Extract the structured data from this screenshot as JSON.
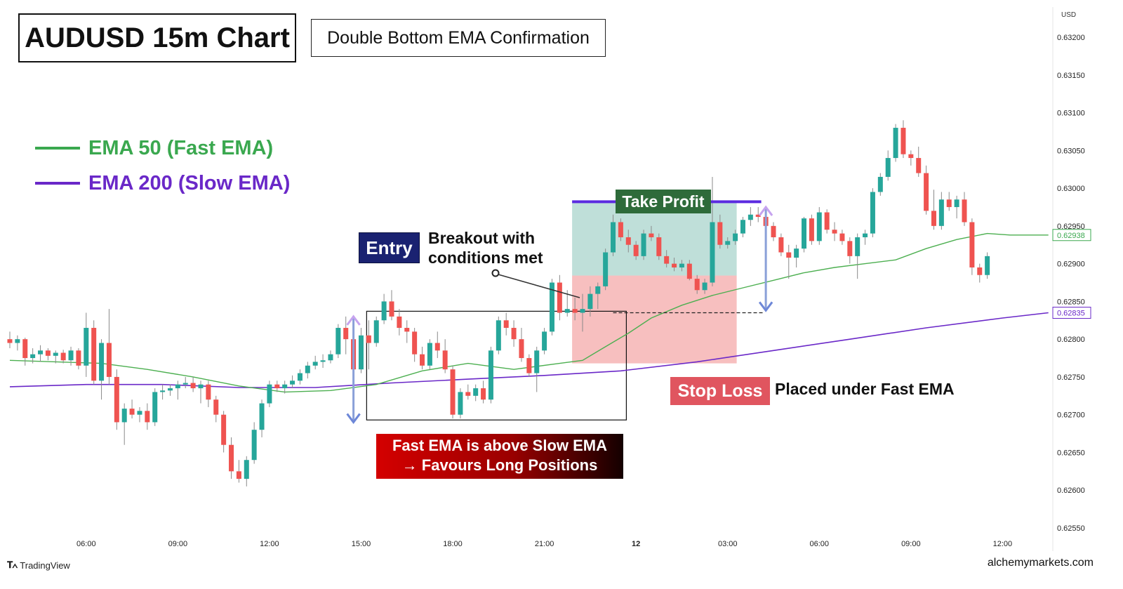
{
  "title": "AUDUSD 15m Chart",
  "subtitle": "Double Bottom EMA Confirmation",
  "legend": [
    {
      "label": "EMA 50 (Fast EMA)",
      "color": "#3aa84f"
    },
    {
      "label": "EMA 200 (Slow EMA)",
      "color": "#6a28c8"
    }
  ],
  "annotations": {
    "entry": "Entry",
    "breakout_line1": "Breakout with",
    "breakout_line2": "conditions met",
    "take_profit": "Take Profit",
    "stop_loss": "Stop Loss",
    "stop_loss_note": "Placed under Fast EMA",
    "ema_note_line1": "Fast EMA is above Slow EMA",
    "ema_note_line2": "→ Favours Long Positions"
  },
  "branding": {
    "tradingview": "TradingView",
    "site": "alchemymarkets.com"
  },
  "colors": {
    "bull": "#26a69a",
    "bear": "#ef5350",
    "fast_ema": "#4caf50",
    "slow_ema": "#6a28c8"
  },
  "chart_data": {
    "type": "candlestick",
    "currency": "USD",
    "y_ticks": [
      "0.63200",
      "0.63150",
      "0.63100",
      "0.63050",
      "0.63000",
      "0.62950",
      "0.62900",
      "0.62850",
      "0.62800",
      "0.62750",
      "0.62700",
      "0.62650",
      "0.62600",
      "0.62550"
    ],
    "ylim": [
      0.6252,
      0.6324
    ],
    "x_ticks": [
      {
        "bar": 10,
        "label": "06:00"
      },
      {
        "bar": 22,
        "label": "09:00"
      },
      {
        "bar": 34,
        "label": "12:00"
      },
      {
        "bar": 46,
        "label": "15:00"
      },
      {
        "bar": 58,
        "label": "18:00"
      },
      {
        "bar": 70,
        "label": "21:00"
      },
      {
        "bar": 82,
        "label": "12"
      },
      {
        "bar": 94,
        "label": "03:00"
      },
      {
        "bar": 106,
        "label": "06:00"
      },
      {
        "bar": 118,
        "label": "09:00"
      },
      {
        "bar": 130,
        "label": "12:00"
      }
    ],
    "price_labels": [
      {
        "value": 0.62938,
        "label": "0.62938",
        "series": "fast"
      },
      {
        "value": 0.62835,
        "label": "0.62835",
        "series": "slow"
      }
    ],
    "candles": [
      [
        0.628,
        0.6281,
        0.62788,
        0.62795
      ],
      [
        0.62795,
        0.62805,
        0.62785,
        0.628
      ],
      [
        0.628,
        0.62802,
        0.62765,
        0.62775
      ],
      [
        0.62775,
        0.62788,
        0.62768,
        0.6278
      ],
      [
        0.6278,
        0.62792,
        0.6277,
        0.62785
      ],
      [
        0.62785,
        0.62788,
        0.62772,
        0.62778
      ],
      [
        0.62778,
        0.62785,
        0.62768,
        0.62782
      ],
      [
        0.62782,
        0.62786,
        0.62768,
        0.62772
      ],
      [
        0.62772,
        0.6279,
        0.62765,
        0.62785
      ],
      [
        0.62785,
        0.62788,
        0.6276,
        0.62765
      ],
      [
        0.62765,
        0.62835,
        0.6275,
        0.62815
      ],
      [
        0.62815,
        0.62825,
        0.6274,
        0.62745
      ],
      [
        0.62745,
        0.628,
        0.6272,
        0.62795
      ],
      [
        0.62795,
        0.6284,
        0.6274,
        0.6275
      ],
      [
        0.6275,
        0.6276,
        0.6268,
        0.6269
      ],
      [
        0.6269,
        0.62715,
        0.6266,
        0.62708
      ],
      [
        0.62708,
        0.6272,
        0.62695,
        0.627
      ],
      [
        0.627,
        0.6271,
        0.6269,
        0.62705
      ],
      [
        0.62705,
        0.62715,
        0.6268,
        0.6269
      ],
      [
        0.6269,
        0.62735,
        0.62685,
        0.6273
      ],
      [
        0.6273,
        0.6274,
        0.6272,
        0.62732
      ],
      [
        0.62732,
        0.6274,
        0.62725,
        0.62735
      ],
      [
        0.62735,
        0.62745,
        0.6272,
        0.6274
      ],
      [
        0.6274,
        0.6275,
        0.62735,
        0.62742
      ],
      [
        0.62742,
        0.6275,
        0.6273,
        0.62735
      ],
      [
        0.62735,
        0.62745,
        0.62715,
        0.6274
      ],
      [
        0.6274,
        0.62745,
        0.6271,
        0.6272
      ],
      [
        0.6272,
        0.62725,
        0.6269,
        0.627
      ],
      [
        0.627,
        0.62705,
        0.6265,
        0.6266
      ],
      [
        0.6266,
        0.6267,
        0.62615,
        0.62625
      ],
      [
        0.62625,
        0.6264,
        0.6261,
        0.62615
      ],
      [
        0.62615,
        0.62645,
        0.62605,
        0.6264
      ],
      [
        0.6264,
        0.6269,
        0.62635,
        0.6268
      ],
      [
        0.6268,
        0.6272,
        0.6267,
        0.62715
      ],
      [
        0.62715,
        0.62745,
        0.6271,
        0.6274
      ],
      [
        0.6274,
        0.62745,
        0.6273,
        0.62735
      ],
      [
        0.62735,
        0.62745,
        0.62728,
        0.6274
      ],
      [
        0.6274,
        0.62752,
        0.62735,
        0.62745
      ],
      [
        0.62745,
        0.6276,
        0.6274,
        0.62755
      ],
      [
        0.62755,
        0.6277,
        0.62748,
        0.62765
      ],
      [
        0.62765,
        0.62778,
        0.6276,
        0.6277
      ],
      [
        0.6277,
        0.6278,
        0.62762,
        0.62772
      ],
      [
        0.62772,
        0.62785,
        0.62768,
        0.6278
      ],
      [
        0.6278,
        0.6282,
        0.62775,
        0.62815
      ],
      [
        0.62815,
        0.6283,
        0.6278,
        0.628
      ],
      [
        0.628,
        0.6281,
        0.6274,
        0.6276
      ],
      [
        0.6276,
        0.62815,
        0.62755,
        0.62805
      ],
      [
        0.62805,
        0.62825,
        0.6276,
        0.62795
      ],
      [
        0.62795,
        0.6283,
        0.6279,
        0.62825
      ],
      [
        0.62825,
        0.6286,
        0.6282,
        0.6285
      ],
      [
        0.6285,
        0.62865,
        0.62825,
        0.6283
      ],
      [
        0.6283,
        0.6284,
        0.62805,
        0.62815
      ],
      [
        0.62815,
        0.62825,
        0.62795,
        0.6281
      ],
      [
        0.6281,
        0.62815,
        0.6277,
        0.6278
      ],
      [
        0.6278,
        0.6279,
        0.6276,
        0.62765
      ],
      [
        0.62765,
        0.628,
        0.6276,
        0.62795
      ],
      [
        0.62795,
        0.6281,
        0.62775,
        0.62785
      ],
      [
        0.62785,
        0.628,
        0.62755,
        0.6276
      ],
      [
        0.6276,
        0.62765,
        0.62695,
        0.627
      ],
      [
        0.627,
        0.62735,
        0.62695,
        0.6273
      ],
      [
        0.6273,
        0.6274,
        0.6272,
        0.62725
      ],
      [
        0.62725,
        0.6274,
        0.62718,
        0.62735
      ],
      [
        0.62735,
        0.62745,
        0.62715,
        0.6272
      ],
      [
        0.6272,
        0.6279,
        0.62715,
        0.62785
      ],
      [
        0.62785,
        0.6283,
        0.6278,
        0.62825
      ],
      [
        0.62825,
        0.62835,
        0.62805,
        0.62815
      ],
      [
        0.62815,
        0.62825,
        0.6279,
        0.628
      ],
      [
        0.628,
        0.62815,
        0.6277,
        0.62775
      ],
      [
        0.62775,
        0.6278,
        0.6275,
        0.62755
      ],
      [
        0.62755,
        0.6279,
        0.6273,
        0.62785
      ],
      [
        0.62785,
        0.62815,
        0.6278,
        0.6281
      ],
      [
        0.6281,
        0.6288,
        0.62805,
        0.62875
      ],
      [
        0.62875,
        0.62885,
        0.62825,
        0.62835
      ],
      [
        0.62835,
        0.62865,
        0.6283,
        0.6284
      ],
      [
        0.6284,
        0.62855,
        0.62825,
        0.62835
      ],
      [
        0.62835,
        0.6286,
        0.6281,
        0.6284
      ],
      [
        0.6284,
        0.6287,
        0.6283,
        0.6286
      ],
      [
        0.6286,
        0.62875,
        0.6284,
        0.6287
      ],
      [
        0.6287,
        0.6292,
        0.62865,
        0.62915
      ],
      [
        0.62915,
        0.62965,
        0.6291,
        0.62955
      ],
      [
        0.62955,
        0.6296,
        0.6293,
        0.62935
      ],
      [
        0.62935,
        0.62945,
        0.62915,
        0.62925
      ],
      [
        0.62925,
        0.6293,
        0.62905,
        0.6291
      ],
      [
        0.6291,
        0.62945,
        0.62905,
        0.6294
      ],
      [
        0.6294,
        0.6295,
        0.6293,
        0.62935
      ],
      [
        0.62935,
        0.6294,
        0.62905,
        0.6291
      ],
      [
        0.6291,
        0.62918,
        0.62895,
        0.629
      ],
      [
        0.629,
        0.62908,
        0.6289,
        0.62895
      ],
      [
        0.62895,
        0.62905,
        0.6289,
        0.629
      ],
      [
        0.629,
        0.62905,
        0.62878,
        0.6288
      ],
      [
        0.6288,
        0.62885,
        0.6286,
        0.62865
      ],
      [
        0.62865,
        0.6288,
        0.6286,
        0.62875
      ],
      [
        0.62875,
        0.63015,
        0.6287,
        0.62955
      ],
      [
        0.62955,
        0.62965,
        0.6292,
        0.62925
      ],
      [
        0.62925,
        0.62935,
        0.6292,
        0.6293
      ],
      [
        0.6293,
        0.62945,
        0.62925,
        0.6294
      ],
      [
        0.6294,
        0.62962,
        0.62935,
        0.62958
      ],
      [
        0.62958,
        0.62975,
        0.6295,
        0.62965
      ],
      [
        0.62965,
        0.62975,
        0.62955,
        0.62962
      ],
      [
        0.62962,
        0.62968,
        0.62945,
        0.6295
      ],
      [
        0.6295,
        0.62955,
        0.6293,
        0.62935
      ],
      [
        0.62935,
        0.6294,
        0.6291,
        0.62915
      ],
      [
        0.62915,
        0.62925,
        0.6288,
        0.62908
      ],
      [
        0.62908,
        0.62925,
        0.62895,
        0.6292
      ],
      [
        0.6292,
        0.62962,
        0.62915,
        0.6296
      ],
      [
        0.6296,
        0.62965,
        0.62925,
        0.6293
      ],
      [
        0.6293,
        0.62975,
        0.62925,
        0.62968
      ],
      [
        0.62968,
        0.62972,
        0.6294,
        0.62945
      ],
      [
        0.62945,
        0.62955,
        0.6293,
        0.6294
      ],
      [
        0.6294,
        0.62945,
        0.62925,
        0.6293
      ],
      [
        0.6293,
        0.62935,
        0.629,
        0.6291
      ],
      [
        0.6291,
        0.6294,
        0.6288,
        0.62935
      ],
      [
        0.62935,
        0.62945,
        0.62925,
        0.6294
      ],
      [
        0.6294,
        0.63,
        0.62935,
        0.62995
      ],
      [
        0.62995,
        0.6302,
        0.6299,
        0.63015
      ],
      [
        0.63015,
        0.6305,
        0.6301,
        0.6304
      ],
      [
        0.6304,
        0.63085,
        0.63035,
        0.6308
      ],
      [
        0.6308,
        0.6309,
        0.6304,
        0.63045
      ],
      [
        0.63045,
        0.6305,
        0.6303,
        0.6304
      ],
      [
        0.6304,
        0.63055,
        0.63015,
        0.6302
      ],
      [
        0.6302,
        0.6303,
        0.62965,
        0.6297
      ],
      [
        0.6297,
        0.62998,
        0.62945,
        0.6295
      ],
      [
        0.6295,
        0.62995,
        0.62945,
        0.62985
      ],
      [
        0.62985,
        0.62995,
        0.6297,
        0.62975
      ],
      [
        0.62975,
        0.6299,
        0.6296,
        0.62985
      ],
      [
        0.62985,
        0.62995,
        0.6295,
        0.62955
      ],
      [
        0.62955,
        0.6296,
        0.62885,
        0.62895
      ],
      [
        0.62895,
        0.629,
        0.62875,
        0.62885
      ],
      [
        0.62885,
        0.62915,
        0.6288,
        0.6291
      ]
    ],
    "fast_ema": [
      [
        0,
        0.62772
      ],
      [
        6,
        0.6277
      ],
      [
        12,
        0.62768
      ],
      [
        18,
        0.6276
      ],
      [
        24,
        0.6275
      ],
      [
        30,
        0.62738
      ],
      [
        36,
        0.6273
      ],
      [
        42,
        0.62732
      ],
      [
        48,
        0.6274
      ],
      [
        54,
        0.62758
      ],
      [
        60,
        0.62768
      ],
      [
        66,
        0.6276
      ],
      [
        72,
        0.62768
      ],
      [
        75,
        0.62772
      ],
      [
        78,
        0.6279
      ],
      [
        81,
        0.62808
      ],
      [
        84,
        0.62828
      ],
      [
        88,
        0.62845
      ],
      [
        92,
        0.62858
      ],
      [
        96,
        0.62868
      ],
      [
        100,
        0.62878
      ],
      [
        104,
        0.62888
      ],
      [
        108,
        0.62895
      ],
      [
        112,
        0.629
      ],
      [
        116,
        0.62905
      ],
      [
        120,
        0.6292
      ],
      [
        124,
        0.62932
      ],
      [
        128,
        0.6294
      ],
      [
        131,
        0.62938
      ],
      [
        136,
        0.62938
      ]
    ],
    "slow_ema": [
      [
        0,
        0.62737
      ],
      [
        10,
        0.6274
      ],
      [
        20,
        0.6274
      ],
      [
        30,
        0.62736
      ],
      [
        40,
        0.62736
      ],
      [
        50,
        0.62742
      ],
      [
        60,
        0.62747
      ],
      [
        70,
        0.62752
      ],
      [
        80,
        0.62758
      ],
      [
        90,
        0.6277
      ],
      [
        100,
        0.62785
      ],
      [
        110,
        0.628
      ],
      [
        120,
        0.62815
      ],
      [
        130,
        0.62828
      ],
      [
        136,
        0.62835
      ]
    ],
    "trade": {
      "start_bar": 74,
      "end_bar": 95,
      "entry": 0.62835,
      "take_profit": 0.62982,
      "stop_loss": 0.62768
    },
    "pattern_box": {
      "start_bar": 47,
      "end_bar": 80,
      "high": 0.62837,
      "low": 0.62693
    },
    "arrows": [
      {
        "bar": 45,
        "top": 0.6283,
        "bottom": 0.6269
      },
      {
        "bar": 99,
        "top": 0.62975,
        "bottom": 0.62838
      }
    ]
  }
}
